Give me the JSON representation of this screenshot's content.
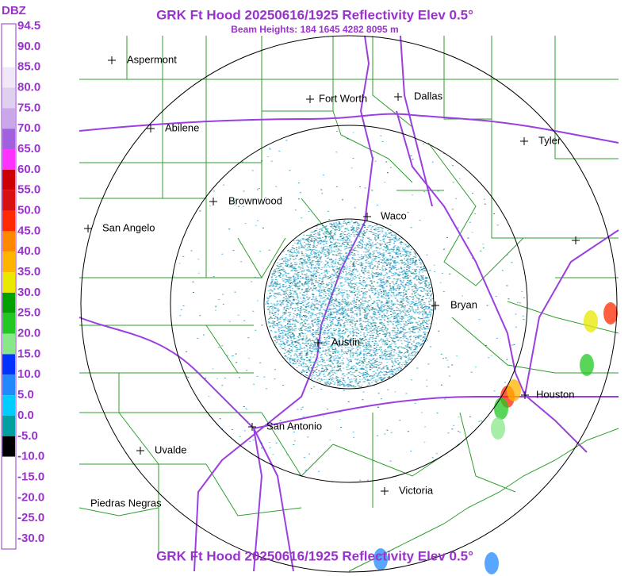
{
  "header": {
    "title": "GRK Ft Hood 20250616/1925 Reflectivity Elev 0.5°",
    "subtitle": "Beam Heights: 184 1645 4282 8095 m",
    "footer": "GRK Ft Hood 20250616/1925 Reflectivity Elev 0.5°"
  },
  "legend": {
    "unit": "DBZ",
    "labels": [
      "94.5",
      "90.0",
      "85.0",
      "80.0",
      "75.0",
      "70.0",
      "65.0",
      "60.0",
      "55.0",
      "50.0",
      "45.0",
      "40.0",
      "35.0",
      "30.0",
      "25.0",
      "20.0",
      "15.0",
      "10.0",
      "5.0",
      "0.0",
      "-5.0",
      "-10.0",
      "-15.0",
      "-20.0",
      "-25.0",
      "-30.0"
    ]
  },
  "cities": [
    "Aspermont",
    "Fort Worth",
    "Dallas",
    "Abilene",
    "Tyler",
    "Brownwood",
    "Waco",
    "San Angelo",
    "Bryan",
    "Austin",
    "Houston",
    "San Antonio",
    "Uvalde",
    "Piedras Negras",
    "Victoria"
  ]
}
